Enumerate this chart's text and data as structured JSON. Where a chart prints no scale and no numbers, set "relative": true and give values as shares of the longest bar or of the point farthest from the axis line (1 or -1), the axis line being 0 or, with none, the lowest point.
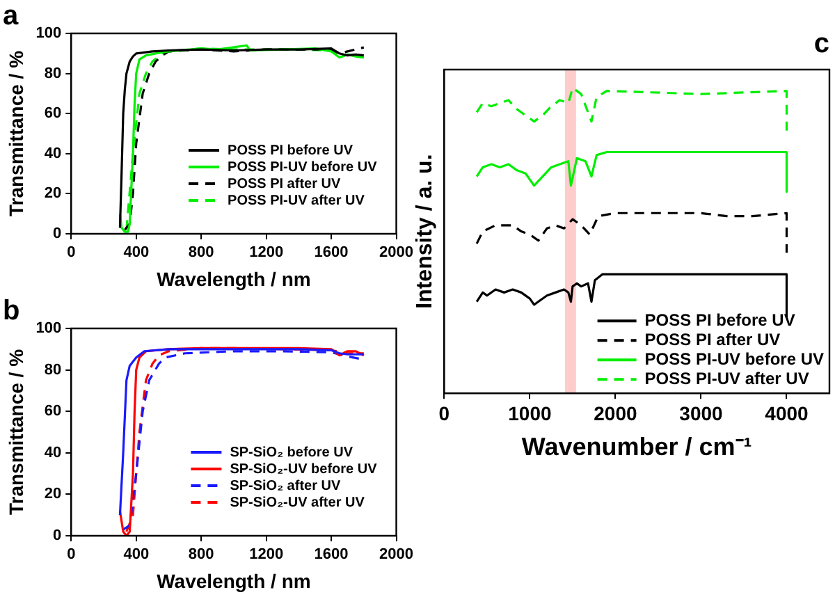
{
  "chart_data": [
    {
      "type": "line",
      "title": "a",
      "xlabel": "Wavelength / nm",
      "ylabel": "Transmittance / %",
      "xlim": [
        0,
        2000
      ],
      "xticks": [
        0,
        400,
        800,
        1200,
        1600,
        2000
      ],
      "ylim": [
        0,
        100
      ],
      "yticks": [
        0,
        20,
        40,
        60,
        80,
        100
      ],
      "grid": false,
      "legend": "bottom right",
      "marker": "none",
      "series": [
        {
          "name": "POSS PI before UV",
          "color": "#000000",
          "line_style": "solid",
          "x": [
            300,
            310,
            320,
            330,
            340,
            360,
            380,
            400,
            450,
            500,
            600,
            800,
            1000,
            1200,
            1400,
            1600,
            1650,
            1700,
            1750,
            1800
          ],
          "values": [
            3,
            30,
            60,
            72,
            80,
            86,
            88.5,
            90,
            90.5,
            91,
            91.5,
            92,
            91.5,
            92,
            92,
            92.5,
            90,
            89,
            89.5,
            89
          ]
        },
        {
          "name": "POSS PI-UV before UV",
          "color": "#00ee00",
          "line_style": "solid",
          "x": [
            300,
            310,
            330,
            350,
            360,
            380,
            390,
            400,
            420,
            460,
            550,
            600,
            800,
            900,
            1080,
            1100,
            1300,
            1500,
            1600,
            1650,
            1700,
            1750,
            1800
          ],
          "values": [
            10,
            3,
            1,
            1,
            5,
            40,
            65,
            80,
            87,
            89,
            90.5,
            91,
            92.5,
            92,
            94,
            91.5,
            92,
            92.5,
            91,
            88,
            89.5,
            88.5,
            88
          ]
        },
        {
          "name": "POSS PI after UV",
          "color": "#000000",
          "line_style": "dashed",
          "x": [
            330,
            360,
            380,
            400,
            440,
            480,
            520,
            560,
            600,
            800,
            1000,
            1200,
            1400,
            1600,
            1650,
            1700,
            1800
          ],
          "values": [
            2,
            5,
            20,
            45,
            70,
            80,
            86,
            89,
            91,
            92,
            91,
            92,
            92,
            92,
            90,
            91,
            93
          ]
        },
        {
          "name": "POSS PI-UV after UV",
          "color": "#00ee00",
          "line_style": "dashed",
          "x": [
            340,
            380,
            420,
            460,
            500,
            560,
            600,
            800,
            1000,
            1200,
            1400,
            1600,
            1650,
            1700,
            1800
          ],
          "values": [
            2,
            40,
            70,
            80,
            86,
            90,
            91,
            92.5,
            92,
            92,
            92,
            91.5,
            88,
            89.5,
            88
          ]
        }
      ]
    },
    {
      "type": "line",
      "title": "b",
      "xlabel": "Wavelength / nm",
      "ylabel": "Transmittance / %",
      "xlim": [
        0,
        2000
      ],
      "xticks": [
        0,
        400,
        800,
        1200,
        1600,
        2000
      ],
      "ylim": [
        0,
        100
      ],
      "yticks": [
        0,
        20,
        40,
        60,
        80,
        100
      ],
      "grid": false,
      "legend": "bottom right",
      "marker": "none",
      "series": [
        {
          "name": "SP-SiO₂ before UV",
          "color": "#1a1aff",
          "line_style": "solid",
          "x": [
            300,
            320,
            340,
            360,
            400,
            450,
            600,
            800,
            1000,
            1200,
            1400,
            1600,
            1650,
            1700,
            1800
          ],
          "values": [
            10,
            40,
            75,
            82,
            86,
            89,
            90,
            90,
            90,
            90,
            90,
            89.5,
            88,
            87.5,
            87.5
          ]
        },
        {
          "name": "SP-SiO₂-UV before UV",
          "color": "#ff0000",
          "line_style": "solid",
          "x": [
            300,
            320,
            340,
            360,
            380,
            390,
            400,
            420,
            460,
            600,
            800,
            1000,
            1200,
            1400,
            1600,
            1650,
            1700,
            1750,
            1800
          ],
          "values": [
            12,
            2,
            0,
            2,
            30,
            60,
            80,
            86,
            89,
            90,
            90.5,
            90.5,
            90.5,
            90.5,
            90,
            87,
            89,
            89,
            87
          ]
        },
        {
          "name": "SP-SiO₂ after UV",
          "color": "#1a1aff",
          "line_style": "dashed",
          "x": [
            320,
            360,
            400,
            440,
            480,
            540,
            580,
            700,
            1000,
            1300,
            1600,
            1700,
            1800
          ],
          "values": [
            3,
            5,
            30,
            60,
            75,
            83,
            86,
            88,
            89,
            89,
            88.5,
            86.5,
            85
          ]
        },
        {
          "name": "SP-SiO₂-UV after UV",
          "color": "#ff0000",
          "line_style": "dashed",
          "x": [
            340,
            380,
            420,
            460,
            500,
            540,
            600,
            800,
            1000,
            1300,
            1600,
            1700,
            1800
          ],
          "values": [
            2,
            10,
            50,
            75,
            83,
            87,
            89,
            90.5,
            90.5,
            90,
            89.5,
            88,
            88
          ]
        }
      ]
    },
    {
      "type": "line",
      "title": "c",
      "xlabel": "Wavenumber / cm⁻¹",
      "ylabel": "Intensity / a. u.",
      "relative": true,
      "xlim": [
        0,
        4500
      ],
      "xticks": [
        0,
        1000,
        2000,
        3000,
        4000
      ],
      "grid": false,
      "legend": "bottom right",
      "marker": "none",
      "bands": [
        {
          "axis": "x",
          "from": 1410,
          "to": 1540,
          "color": "#ff0000"
        }
      ],
      "series": [
        {
          "name": "POSS PI before UV",
          "color": "#000000",
          "line_style": "solid",
          "x": [
            380,
            450,
            500,
            600,
            700,
            800,
            900,
            1000,
            1050,
            1100,
            1200,
            1300,
            1400,
            1450,
            1480,
            1500,
            1550,
            1600,
            1680,
            1720,
            1760,
            1850,
            2000,
            3000,
            4000,
            4000
          ],
          "values": [
            0.3,
            0.33,
            0.32,
            0.34,
            0.33,
            0.34,
            0.33,
            0.31,
            0.29,
            0.3,
            0.32,
            0.33,
            0.34,
            0.33,
            0.3,
            0.35,
            0.36,
            0.35,
            0.36,
            0.3,
            0.37,
            0.39,
            0.39,
            0.39,
            0.39,
            0.25
          ]
        },
        {
          "name": "POSS PI after UV",
          "color": "#000000",
          "line_style": "dashed",
          "x": [
            380,
            450,
            600,
            800,
            900,
            1000,
            1100,
            1200,
            1300,
            1400,
            1500,
            1600,
            1700,
            1800,
            2000,
            3000,
            3300,
            3600,
            4000,
            4000
          ],
          "values": [
            0.49,
            0.53,
            0.55,
            0.55,
            0.53,
            0.52,
            0.5,
            0.54,
            0.55,
            0.54,
            0.57,
            0.55,
            0.52,
            0.58,
            0.59,
            0.59,
            0.58,
            0.58,
            0.59,
            0.46
          ]
        },
        {
          "name": "POSS PI-UV before UV",
          "color": "#00ee00",
          "line_style": "solid",
          "x": [
            380,
            450,
            550,
            650,
            750,
            850,
            950,
            1050,
            1150,
            1250,
            1350,
            1450,
            1480,
            1550,
            1650,
            1720,
            1780,
            1900,
            3000,
            4000,
            4000
          ],
          "values": [
            0.71,
            0.74,
            0.75,
            0.74,
            0.75,
            0.73,
            0.72,
            0.68,
            0.71,
            0.74,
            0.75,
            0.76,
            0.68,
            0.77,
            0.76,
            0.71,
            0.78,
            0.79,
            0.79,
            0.79,
            0.66
          ]
        },
        {
          "name": "POSS PI-UV after UV",
          "color": "#00ee00",
          "line_style": "dashed",
          "x": [
            380,
            450,
            550,
            650,
            750,
            850,
            950,
            1050,
            1150,
            1250,
            1350,
            1450,
            1500,
            1600,
            1720,
            1780,
            1900,
            3000,
            4000,
            4000
          ],
          "values": [
            0.92,
            0.95,
            0.94,
            0.95,
            0.96,
            0.93,
            0.91,
            0.89,
            0.91,
            0.94,
            0.96,
            0.95,
            1.0,
            0.98,
            0.89,
            0.97,
            0.99,
            0.98,
            0.99,
            0.86
          ]
        }
      ]
    }
  ]
}
